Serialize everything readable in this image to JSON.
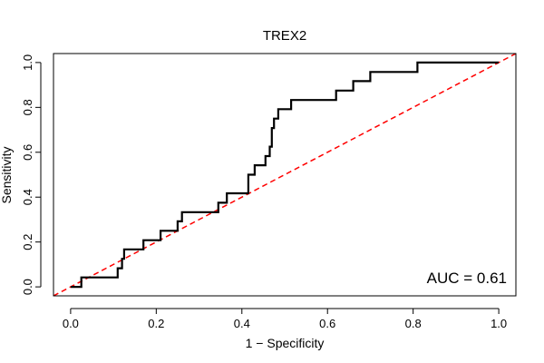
{
  "chart_data": {
    "type": "line",
    "title": "TREX2",
    "xlabel": "1 − Specificity",
    "ylabel": "Sensitivity",
    "xlim": [
      -0.04,
      1.04
    ],
    "ylim": [
      -0.04,
      1.04
    ],
    "x_ticks": [
      0.0,
      0.2,
      0.4,
      0.6,
      0.8,
      1.0
    ],
    "x_tick_labels": [
      "0.0",
      "0.2",
      "0.4",
      "0.6",
      "0.8",
      "1.0"
    ],
    "y_ticks": [
      0.0,
      0.2,
      0.4,
      0.6,
      0.8,
      1.0
    ],
    "y_tick_labels": [
      "0.0",
      "0.2",
      "0.4",
      "0.6",
      "0.8",
      "1.0"
    ],
    "grid": false,
    "annotation": "AUC = 0.61",
    "series": [
      {
        "name": "ROC curve",
        "color": "#000000",
        "x": [
          0.0,
          0.025,
          0.025,
          0.11,
          0.11,
          0.12,
          0.12,
          0.125,
          0.125,
          0.17,
          0.17,
          0.21,
          0.21,
          0.25,
          0.25,
          0.26,
          0.26,
          0.345,
          0.345,
          0.365,
          0.365,
          0.415,
          0.415,
          0.43,
          0.43,
          0.455,
          0.455,
          0.465,
          0.465,
          0.47,
          0.47,
          0.475,
          0.475,
          0.485,
          0.485,
          0.49,
          0.49,
          0.515,
          0.515,
          0.62,
          0.62,
          0.66,
          0.66,
          0.7,
          0.7,
          0.81,
          0.81,
          1.0
        ],
        "y": [
          0.0,
          0.0,
          0.042,
          0.042,
          0.083,
          0.083,
          0.125,
          0.125,
          0.167,
          0.167,
          0.208,
          0.208,
          0.25,
          0.25,
          0.292,
          0.292,
          0.333,
          0.333,
          0.375,
          0.375,
          0.417,
          0.417,
          0.5,
          0.5,
          0.542,
          0.542,
          0.583,
          0.583,
          0.625,
          0.625,
          0.708,
          0.708,
          0.75,
          0.75,
          0.792,
          0.792,
          0.792,
          0.792,
          0.833,
          0.833,
          0.875,
          0.875,
          0.917,
          0.917,
          0.958,
          0.958,
          1.0,
          1.0
        ]
      },
      {
        "name": "chance line",
        "color": "#ff0000",
        "style": "dashed",
        "x": [
          0.0,
          1.0
        ],
        "y": [
          0.0,
          1.0
        ]
      }
    ]
  }
}
